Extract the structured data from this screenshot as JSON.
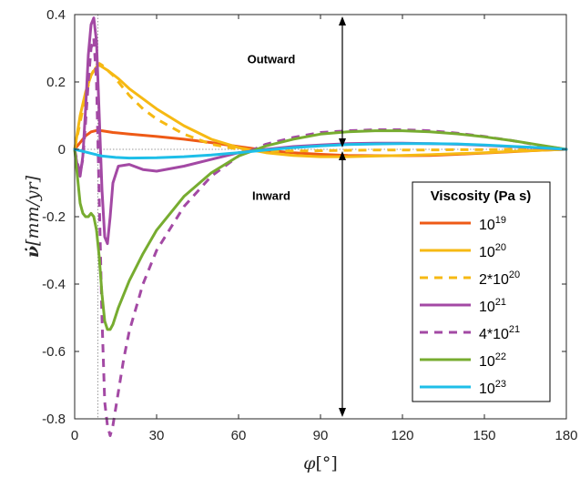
{
  "chart_data": {
    "type": "line",
    "xlabel_symbol": "φ",
    "xlabel_unit": "[°]",
    "ylabel_symbol": "ν̇",
    "ylabel_unit": "[mm/yr]",
    "xlim": [
      0,
      180
    ],
    "ylim": [
      -0.8,
      0.4
    ],
    "xticks": [
      0,
      30,
      60,
      90,
      120,
      150,
      180
    ],
    "xtick_labels": [
      "0",
      "30",
      "60",
      "90",
      "120",
      "150",
      "180"
    ],
    "yticks": [
      0.4,
      0.2,
      0,
      -0.2,
      -0.4,
      -0.6,
      -0.8
    ],
    "ytick_labels": [
      "0.4",
      "0.2",
      "0",
      "-0.2",
      "-0.4",
      "-0.6",
      "-0.8"
    ],
    "grid": false,
    "legend_title": "Viscosity (Pa s)",
    "legend_position": "right",
    "annotations": [
      {
        "text": "Outward",
        "x": 72,
        "y": 0.255
      },
      {
        "text": "Inward",
        "x": 72,
        "y": -0.15
      }
    ],
    "arrow_x": 98,
    "reference_lines": {
      "horizontal_y": 0,
      "vertical_x": 8.5
    },
    "series": [
      {
        "base": "10",
        "exp": "19",
        "color": "#EE5A16",
        "dash": "solid",
        "x": [
          0,
          2,
          4,
          6,
          8,
          10,
          14,
          20,
          30,
          40,
          50,
          60,
          70,
          80,
          90,
          100,
          110,
          120,
          130,
          140,
          150,
          160,
          170,
          180
        ],
        "y": [
          0,
          0.02,
          0.04,
          0.052,
          0.056,
          0.055,
          0.05,
          0.045,
          0.038,
          0.03,
          0.02,
          0.008,
          -0.003,
          -0.01,
          -0.015,
          -0.018,
          -0.019,
          -0.019,
          -0.018,
          -0.015,
          -0.011,
          -0.007,
          -0.003,
          0
        ]
      },
      {
        "base": "10",
        "exp": "20",
        "color": "#F6B913",
        "dash": "solid",
        "x": [
          0,
          2,
          4,
          6,
          8,
          9,
          12,
          16,
          20,
          30,
          40,
          50,
          60,
          70,
          80,
          90,
          100,
          110,
          120,
          130,
          140,
          150,
          160,
          170,
          180
        ],
        "y": [
          0,
          0.1,
          0.17,
          0.22,
          0.245,
          0.25,
          0.235,
          0.21,
          0.18,
          0.12,
          0.07,
          0.03,
          0.005,
          -0.01,
          -0.018,
          -0.022,
          -0.022,
          -0.02,
          -0.018,
          -0.016,
          -0.013,
          -0.01,
          -0.006,
          -0.003,
          0
        ]
      },
      {
        "base": "2*10",
        "exp": "20",
        "color": "#F6B913",
        "dash": "dashed",
        "x": [
          0,
          2,
          4,
          6,
          8,
          9,
          10,
          14,
          20,
          25,
          30,
          40,
          50,
          60,
          70,
          80,
          90,
          100,
          110,
          120,
          130,
          140,
          150,
          160,
          170,
          180
        ],
        "y": [
          0,
          0.08,
          0.16,
          0.22,
          0.25,
          0.255,
          0.25,
          0.22,
          0.16,
          0.12,
          0.09,
          0.045,
          0.015,
          0,
          -0.005,
          -0.005,
          -0.004,
          -0.003,
          -0.002,
          -0.002,
          -0.002,
          -0.001,
          -0.001,
          0,
          0,
          0
        ]
      },
      {
        "base": "10",
        "exp": "21",
        "color": "#A349A4",
        "dash": "solid",
        "x": [
          0,
          1,
          2,
          3,
          4,
          5,
          6,
          7,
          8,
          9,
          10,
          11,
          12,
          13,
          14,
          16,
          20,
          25,
          30,
          40,
          50,
          60,
          70,
          80,
          90,
          100,
          110,
          120,
          130,
          140,
          150,
          160,
          170,
          180
        ],
        "y": [
          0,
          -0.05,
          -0.08,
          -0.02,
          0.12,
          0.28,
          0.37,
          0.39,
          0.32,
          0.1,
          -0.12,
          -0.26,
          -0.28,
          -0.2,
          -0.1,
          -0.05,
          -0.045,
          -0.06,
          -0.065,
          -0.05,
          -0.03,
          -0.01,
          0,
          0.008,
          0.013,
          0.017,
          0.018,
          0.018,
          0.017,
          0.015,
          0.012,
          0.008,
          0.004,
          0
        ]
      },
      {
        "base": "4*10",
        "exp": "21",
        "color": "#A349A4",
        "dash": "dashed",
        "x": [
          0,
          1,
          2,
          3,
          4,
          5,
          6,
          7,
          8,
          9,
          10,
          11,
          12,
          13,
          14,
          16,
          18,
          20,
          25,
          30,
          40,
          50,
          60,
          70,
          80,
          90,
          100,
          110,
          120,
          130,
          140,
          150,
          160,
          170,
          180
        ],
        "y": [
          0,
          -0.04,
          -0.07,
          -0.03,
          0.08,
          0.2,
          0.3,
          0.33,
          0.2,
          -0.15,
          -0.5,
          -0.75,
          -0.82,
          -0.85,
          -0.82,
          -0.72,
          -0.62,
          -0.54,
          -0.4,
          -0.3,
          -0.17,
          -0.08,
          -0.02,
          0.015,
          0.035,
          0.05,
          0.055,
          0.058,
          0.058,
          0.055,
          0.048,
          0.038,
          0.026,
          0.012,
          0
        ]
      },
      {
        "base": "10",
        "exp": "22",
        "color": "#77AC30",
        "dash": "solid",
        "x": [
          0,
          1,
          2,
          3,
          4,
          5,
          6,
          7,
          8,
          9,
          10,
          11,
          12,
          13,
          14,
          16,
          20,
          25,
          30,
          40,
          50,
          60,
          70,
          80,
          90,
          100,
          110,
          120,
          130,
          140,
          150,
          160,
          170,
          180
        ],
        "y": [
          0,
          -0.08,
          -0.16,
          -0.19,
          -0.2,
          -0.2,
          -0.19,
          -0.2,
          -0.24,
          -0.32,
          -0.43,
          -0.51,
          -0.535,
          -0.535,
          -0.52,
          -0.47,
          -0.39,
          -0.31,
          -0.24,
          -0.14,
          -0.07,
          -0.02,
          0.01,
          0.03,
          0.045,
          0.052,
          0.055,
          0.055,
          0.052,
          0.046,
          0.037,
          0.026,
          0.013,
          0
        ]
      },
      {
        "base": "10",
        "exp": "23",
        "color": "#1EBEE8",
        "dash": "solid",
        "x": [
          0,
          5,
          10,
          15,
          20,
          30,
          40,
          50,
          60,
          70,
          80,
          90,
          100,
          110,
          120,
          130,
          140,
          150,
          160,
          170,
          180
        ],
        "y": [
          0,
          -0.01,
          -0.02,
          -0.024,
          -0.026,
          -0.025,
          -0.022,
          -0.017,
          -0.01,
          -0.002,
          0.005,
          0.01,
          0.014,
          0.016,
          0.017,
          0.017,
          0.016,
          0.013,
          0.009,
          0.005,
          0
        ]
      }
    ]
  }
}
